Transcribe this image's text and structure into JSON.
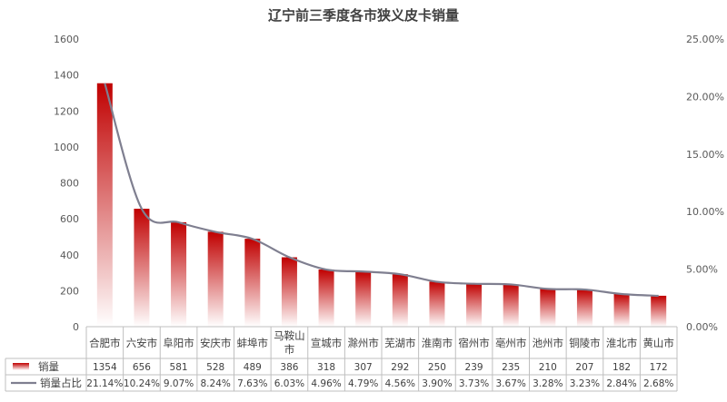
{
  "chart_data": {
    "type": "bar",
    "title": "辽宁前三季度各市狭义皮卡销量",
    "categories": [
      "合肥市",
      "六安市",
      "阜阳市",
      "安庆市",
      "蚌埠市",
      "马鞍山市",
      "宣城市",
      "滁州市",
      "芜湖市",
      "淮南市",
      "宿州市",
      "亳州市",
      "池州市",
      "铜陵市",
      "淮北市",
      "黄山市"
    ],
    "series": [
      {
        "name": "销量",
        "type": "bar",
        "axis": "left",
        "values": [
          1354,
          656,
          581,
          528,
          489,
          386,
          318,
          307,
          292,
          250,
          239,
          235,
          210,
          207,
          182,
          172
        ]
      },
      {
        "name": "销量占比",
        "type": "line",
        "axis": "right",
        "values": [
          21.14,
          10.24,
          9.07,
          8.24,
          7.63,
          6.03,
          4.96,
          4.79,
          4.56,
          3.9,
          3.73,
          3.67,
          3.28,
          3.23,
          2.84,
          2.68
        ],
        "labels": [
          "21.14%",
          "10.24%",
          "9.07%",
          "8.24%",
          "7.63%",
          "6.03%",
          "4.96%",
          "4.79%",
          "4.56%",
          "3.90%",
          "3.73%",
          "3.67%",
          "3.28%",
          "3.23%",
          "2.84%",
          "2.68%"
        ]
      }
    ],
    "y_left": {
      "ylim": [
        0,
        1600
      ],
      "ticks": [
        "0",
        "200",
        "400",
        "600",
        "800",
        "1000",
        "1200",
        "1400",
        "1600"
      ]
    },
    "y_right": {
      "ylim": [
        0,
        25
      ],
      "ticks": [
        "0.00%",
        "5.00%",
        "10.00%",
        "15.00%",
        "20.00%",
        "25.00%"
      ]
    },
    "grid": false,
    "legend": "data-table-bottom",
    "colors": {
      "bar_top": "#c00000",
      "bar_bottom": "#ffffff",
      "line": "#7f7f90",
      "axis": "#bfbfbf"
    }
  }
}
